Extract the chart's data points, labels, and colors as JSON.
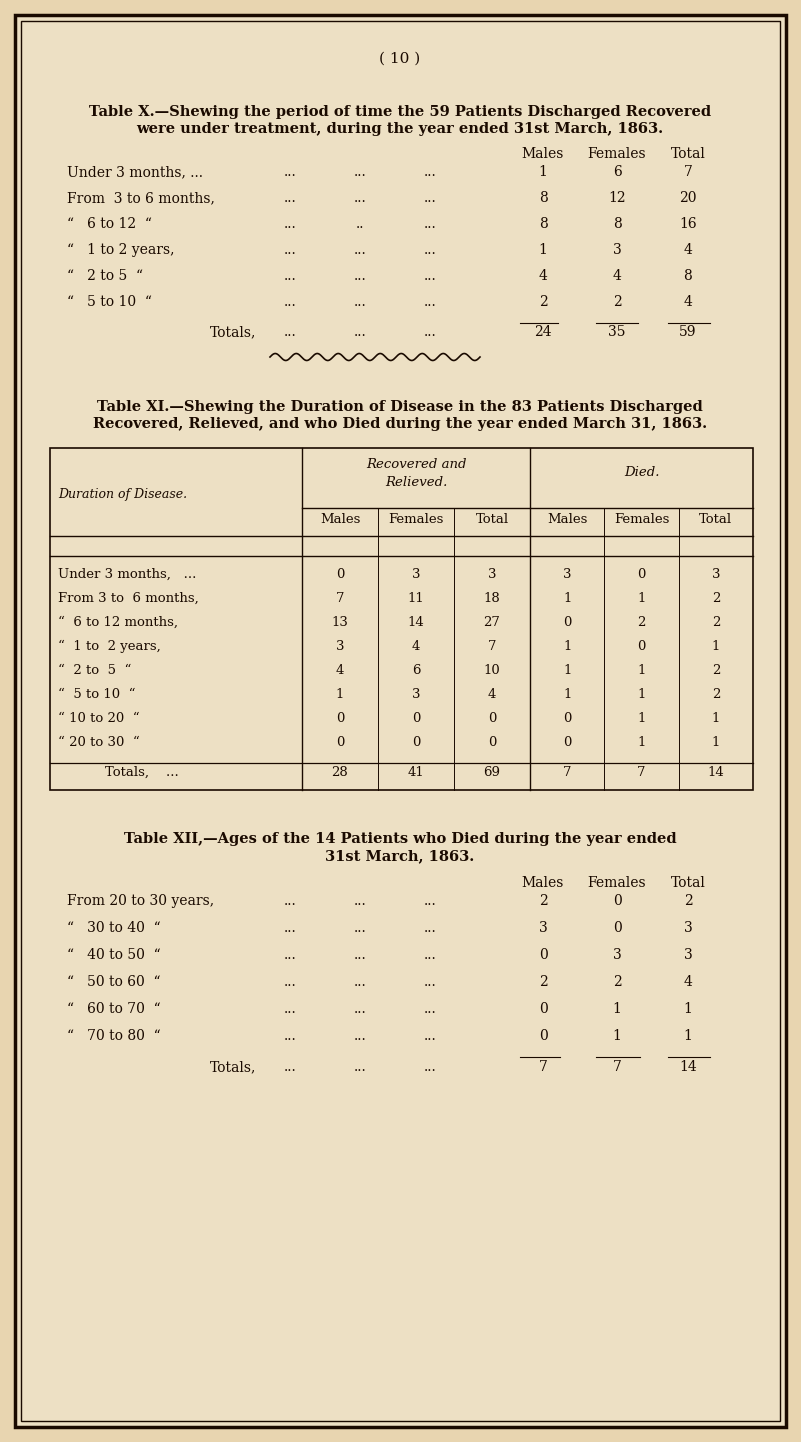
{
  "bg_color": "#e8d5b0",
  "page_color": "#ede0c4",
  "border_color": "#2a1a0a",
  "text_color": "#1a0a00",
  "page_number": "( 10 )",
  "table_x_title1": "Table X.—Shewing the period of time the 59 Patients Discharged Recovered",
  "table_x_title2": "were under treatment, during the year ended 31st March, 1863.",
  "table_xi_title1": "Table XI.—Shewing the Duration of Disease in the 83 Patients Discharged",
  "table_xi_title2": "Recovered, Relieved, and who Died during the year ended March 31, 1863.",
  "table_xii_title1": "Table XII,—Ages of the 14 Patients who Died during the year ended",
  "table_xii_title2": "31st March, 1863."
}
